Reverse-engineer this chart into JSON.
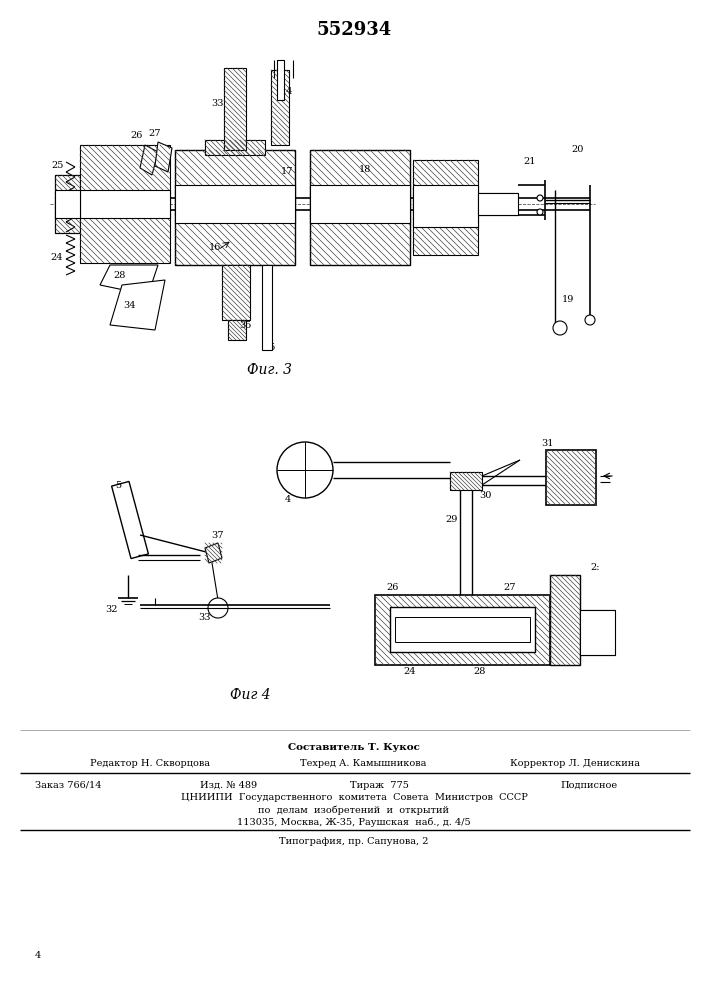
{
  "patent_number": "552934",
  "fig3_label": "Фиг. 3",
  "fig4_label": "Фиг 4",
  "footer_composer": "Составитель Т. Кукос",
  "footer_editor": "Редактор Н. Скворцова",
  "footer_techred": "Техред А. Камышникова",
  "footer_corrector": "Корректор Л. Денискина",
  "footer_order": "Заказ 766/14",
  "footer_izd": "Изд. № 489",
  "footer_tirazh": "Тираж  775",
  "footer_podpisnoe": "Подписное",
  "footer_cniip": "ЦНИИПИ  Государственного  комитета  Совета  Министров  СССР",
  "footer_po_delam": "по  делам  изобретений  и  открытий",
  "footer_address": "113035, Москва, Ж-35, Раушская  наб., д. 4/5",
  "footer_tipograf": "Типография, пр. Сапунова, 2",
  "bg_color": "#ffffff",
  "line_color": "#000000"
}
